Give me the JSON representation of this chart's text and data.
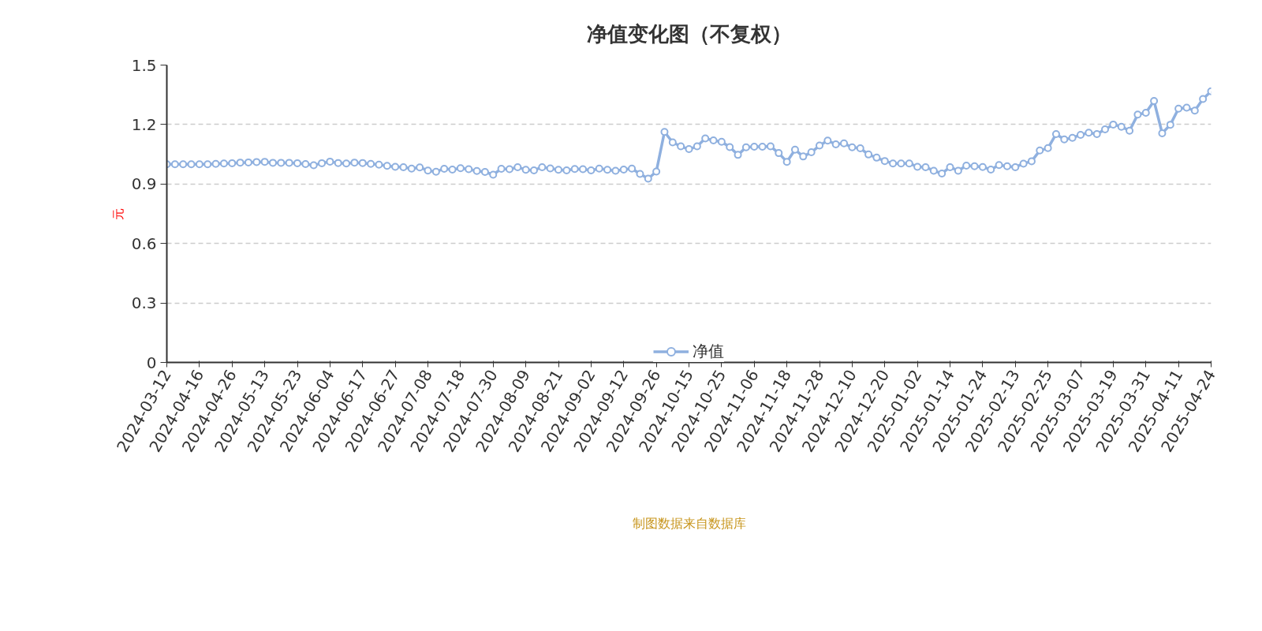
{
  "chart_data": {
    "type": "line",
    "title": "净值变化图（不复权）",
    "ylabel": "元",
    "categories": [
      "2024-03-12",
      null,
      null,
      null,
      "2024-04-16",
      null,
      null,
      null,
      "2024-04-26",
      null,
      null,
      null,
      "2024-05-13",
      null,
      null,
      null,
      "2024-05-23",
      null,
      null,
      null,
      "2024-06-04",
      null,
      null,
      null,
      "2024-06-17",
      null,
      null,
      null,
      "2024-06-27",
      null,
      null,
      null,
      "2024-07-08",
      null,
      null,
      null,
      "2024-07-18",
      null,
      null,
      null,
      "2024-07-30",
      null,
      null,
      null,
      "2024-08-09",
      null,
      null,
      null,
      "2024-08-21",
      null,
      null,
      null,
      "2024-09-02",
      null,
      null,
      null,
      "2024-09-12",
      null,
      null,
      null,
      "2024-09-26",
      null,
      null,
      null,
      "2024-10-15",
      null,
      null,
      null,
      "2024-10-25",
      null,
      null,
      null,
      "2024-11-06",
      null,
      null,
      null,
      "2024-11-18",
      null,
      null,
      null,
      "2024-11-28",
      null,
      null,
      null,
      "2024-12-10",
      null,
      null,
      null,
      "2024-12-20",
      null,
      null,
      null,
      "2025-01-02",
      null,
      null,
      null,
      "2025-01-14",
      null,
      null,
      null,
      "2025-01-24",
      null,
      null,
      null,
      "2025-02-13",
      null,
      null,
      null,
      "2025-02-25",
      null,
      null,
      null,
      "2025-03-07",
      null,
      null,
      null,
      "2025-03-19",
      null,
      null,
      null,
      "2025-03-31",
      null,
      null,
      null,
      "2025-04-11",
      null,
      null,
      null,
      "2025-04-24"
    ],
    "series": [
      {
        "name": "净值",
        "color": "#8fb0df",
        "values": [
          1.0,
          1.0,
          1.0,
          1.0,
          1.0,
          1.0,
          1.002,
          1.004,
          1.005,
          1.008,
          1.009,
          1.011,
          1.012,
          1.007,
          1.007,
          1.007,
          1.005,
          1.001,
          0.995,
          1.005,
          1.013,
          1.006,
          1.004,
          1.008,
          1.006,
          1.002,
          0.998,
          0.992,
          0.987,
          0.985,
          0.978,
          0.984,
          0.968,
          0.962,
          0.977,
          0.973,
          0.98,
          0.975,
          0.966,
          0.961,
          0.947,
          0.977,
          0.975,
          0.985,
          0.972,
          0.969,
          0.985,
          0.979,
          0.972,
          0.969,
          0.976,
          0.975,
          0.969,
          0.978,
          0.972,
          0.967,
          0.973,
          0.978,
          0.951,
          0.927,
          0.963,
          1.163,
          1.11,
          1.09,
          1.076,
          1.09,
          1.13,
          1.12,
          1.113,
          1.086,
          1.047,
          1.085,
          1.088,
          1.088,
          1.09,
          1.056,
          1.012,
          1.073,
          1.039,
          1.06,
          1.094,
          1.119,
          1.1,
          1.105,
          1.085,
          1.08,
          1.049,
          1.033,
          1.016,
          1.004,
          1.004,
          1.004,
          0.987,
          0.985,
          0.967,
          0.953,
          0.985,
          0.967,
          0.993,
          0.99,
          0.986,
          0.973,
          0.996,
          0.99,
          0.985,
          1.003,
          1.015,
          1.069,
          1.081,
          1.152,
          1.125,
          1.133,
          1.148,
          1.159,
          1.152,
          1.176,
          1.2,
          1.189,
          1.169,
          1.25,
          1.259,
          1.319,
          1.156,
          1.199,
          1.28,
          1.285,
          1.27,
          1.329,
          1.368
        ]
      }
    ],
    "ylim": [
      0,
      1.5
    ],
    "yticks": [
      0,
      0.3,
      0.6,
      0.9,
      1.2,
      1.5
    ],
    "grid": "y",
    "legend": "bottom",
    "marker": "circle",
    "line_style": "solid",
    "annotations": [
      "制图数据来自数据库"
    ]
  }
}
